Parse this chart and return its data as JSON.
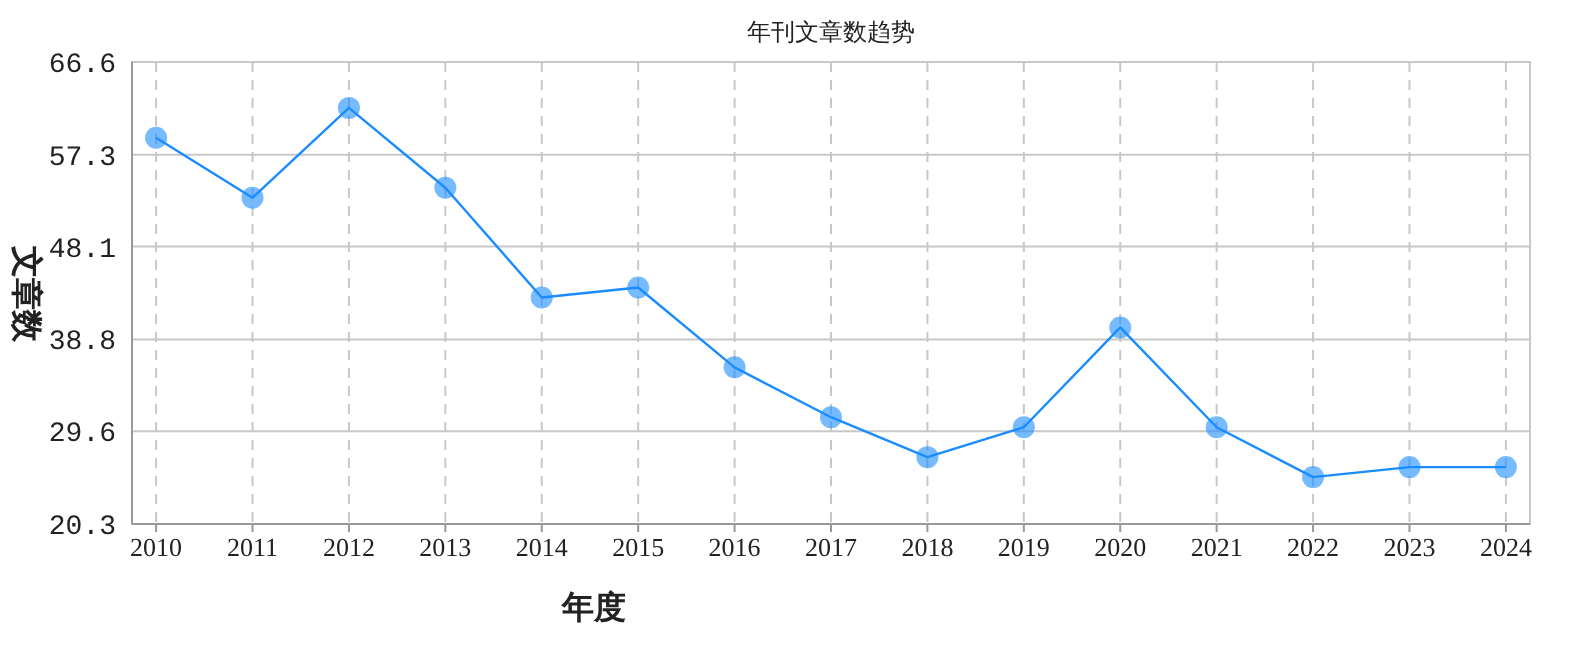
{
  "chart_data": {
    "type": "line",
    "title": "年刊文章数趋势",
    "xlabel": "年度",
    "ylabel": "文章数",
    "categories": [
      "2010",
      "2011",
      "2012",
      "2013",
      "2014",
      "2015",
      "2016",
      "2017",
      "2018",
      "2019",
      "2020",
      "2021",
      "2022",
      "2023",
      "2024"
    ],
    "series": [
      {
        "color": "#1a8cff",
        "values": [
          59,
          53,
          62,
          54,
          43,
          44,
          36,
          31,
          27,
          30,
          40,
          30,
          25,
          26,
          26
        ]
      }
    ],
    "ylim": [
      20.3,
      66.6
    ],
    "yticks": [
      20.3,
      29.6,
      38.8,
      48.1,
      57.3,
      66.6
    ],
    "grid": true,
    "marker": "circle",
    "line_style": "solid"
  }
}
